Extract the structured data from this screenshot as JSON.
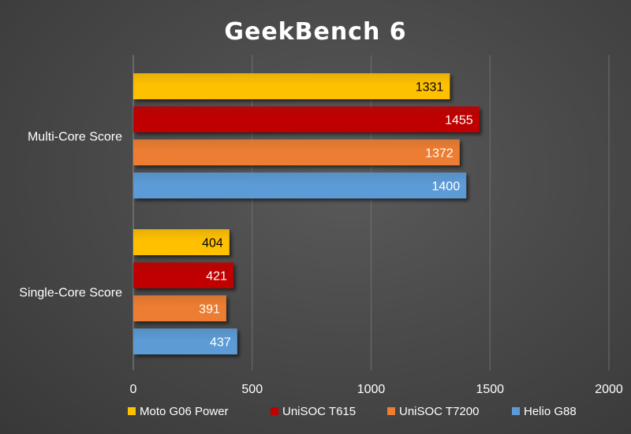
{
  "chart_data": {
    "type": "bar",
    "orientation": "horizontal",
    "title": "GeekBench 6",
    "categories": [
      "Multi-Core Score",
      "Single-Core Score"
    ],
    "series": [
      {
        "name": "Moto G06 Power",
        "values": [
          1331,
          404
        ],
        "color": "#ffc000",
        "label_color": "#000000"
      },
      {
        "name": "UniSOC T615",
        "values": [
          1455,
          421
        ],
        "color": "#c00000",
        "label_color": "#ffffff"
      },
      {
        "name": "UniSOC T7200",
        "values": [
          1372,
          391
        ],
        "color": "#ed7d31",
        "label_color": "#ffffff"
      },
      {
        "name": "Helio G88",
        "values": [
          1400,
          437
        ],
        "color": "#5b9bd5",
        "label_color": "#ffffff"
      }
    ],
    "xlim": [
      0,
      2000
    ],
    "xticks": [
      "0",
      "500",
      "1000",
      "1500",
      "2000"
    ],
    "grid": "vertical",
    "legend": "bottom"
  }
}
